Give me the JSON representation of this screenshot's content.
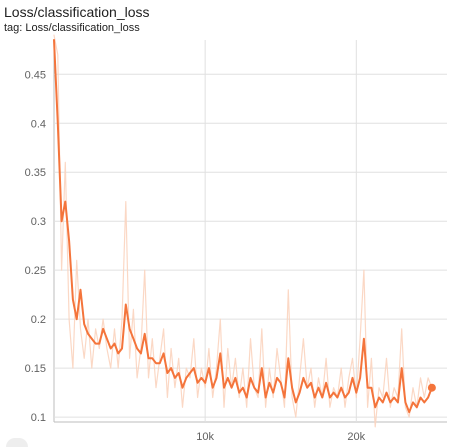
{
  "card": {
    "title": "Loss/classification_loss",
    "tag": "tag: Loss/classification_loss"
  },
  "chart_data": {
    "type": "line",
    "title": "Loss/classification_loss",
    "xlabel": "",
    "ylabel": "",
    "xlim": [
      0,
      26000
    ],
    "ylim": [
      0.095,
      0.485
    ],
    "grid": true,
    "x_ticks": [
      10000,
      20000
    ],
    "x_tick_labels": [
      "10k",
      "20k"
    ],
    "y_ticks": [
      0.1,
      0.15,
      0.2,
      0.25,
      0.3,
      0.35,
      0.4,
      0.45
    ],
    "y_tick_labels": [
      "0.1",
      "0.15",
      "0.2",
      "0.25",
      "0.3",
      "0.35",
      "0.4",
      "0.45"
    ],
    "colors": {
      "smoothed": "#f4743b",
      "raw": "#fbd4bf",
      "grid": "#e0e0e0"
    },
    "series": [
      {
        "kind": "raw",
        "x": [
          0,
          250,
          500,
          750,
          1000,
          1250,
          1500,
          1750,
          2000,
          2250,
          2500,
          2750,
          3000,
          3250,
          3500,
          3750,
          4000,
          4250,
          4500,
          4750,
          5000,
          5250,
          5500,
          5750,
          6000,
          6250,
          6500,
          6750,
          7000,
          7250,
          7500,
          7750,
          8000,
          8250,
          8500,
          8750,
          9000,
          9250,
          9500,
          9750,
          10000,
          10250,
          10500,
          10750,
          11000,
          11250,
          11500,
          11750,
          12000,
          12250,
          12500,
          12750,
          13000,
          13250,
          13500,
          13750,
          14000,
          14250,
          14500,
          14750,
          15000,
          15250,
          15500,
          15750,
          16000,
          16250,
          16500,
          16750,
          17000,
          17250,
          17500,
          17750,
          18000,
          18250,
          18500,
          18750,
          19000,
          19250,
          19500,
          19750,
          20000,
          20250,
          20500,
          20750,
          21000,
          21250,
          21500,
          21750,
          22000,
          22250,
          22500,
          22750,
          23000,
          23250,
          23500,
          23750,
          24000,
          24250,
          24500,
          24750,
          25000
        ],
        "y": [
          0.49,
          0.47,
          0.25,
          0.36,
          0.2,
          0.15,
          0.26,
          0.19,
          0.16,
          0.2,
          0.15,
          0.19,
          0.17,
          0.2,
          0.17,
          0.15,
          0.19,
          0.15,
          0.2,
          0.32,
          0.16,
          0.21,
          0.14,
          0.17,
          0.25,
          0.14,
          0.18,
          0.13,
          0.16,
          0.19,
          0.12,
          0.17,
          0.13,
          0.16,
          0.11,
          0.15,
          0.14,
          0.18,
          0.12,
          0.15,
          0.13,
          0.17,
          0.12,
          0.15,
          0.2,
          0.11,
          0.17,
          0.13,
          0.16,
          0.12,
          0.15,
          0.11,
          0.18,
          0.13,
          0.12,
          0.19,
          0.11,
          0.15,
          0.12,
          0.17,
          0.14,
          0.11,
          0.23,
          0.12,
          0.1,
          0.14,
          0.18,
          0.13,
          0.15,
          0.11,
          0.14,
          0.12,
          0.16,
          0.11,
          0.13,
          0.12,
          0.15,
          0.11,
          0.14,
          0.16,
          0.12,
          0.18,
          0.25,
          0.11,
          0.16,
          0.09,
          0.13,
          0.12,
          0.16,
          0.11,
          0.13,
          0.12,
          0.19,
          0.11,
          0.1,
          0.13,
          0.11,
          0.14,
          0.12,
          0.14,
          0.13
        ]
      },
      {
        "kind": "smoothed",
        "x": [
          0,
          250,
          500,
          750,
          1000,
          1250,
          1500,
          1750,
          2000,
          2250,
          2500,
          2750,
          3000,
          3250,
          3500,
          3750,
          4000,
          4250,
          4500,
          4750,
          5000,
          5250,
          5500,
          5750,
          6000,
          6250,
          6500,
          6750,
          7000,
          7250,
          7500,
          7750,
          8000,
          8250,
          8500,
          8750,
          9000,
          9250,
          9500,
          9750,
          10000,
          10250,
          10500,
          10750,
          11000,
          11250,
          11500,
          11750,
          12000,
          12250,
          12500,
          12750,
          13000,
          13250,
          13500,
          13750,
          14000,
          14250,
          14500,
          14750,
          15000,
          15250,
          15500,
          15750,
          16000,
          16250,
          16500,
          16750,
          17000,
          17250,
          17500,
          17750,
          18000,
          18250,
          18500,
          18750,
          19000,
          19250,
          19500,
          19750,
          20000,
          20250,
          20500,
          20750,
          21000,
          21250,
          21500,
          21750,
          22000,
          22250,
          22500,
          22750,
          23000,
          23250,
          23500,
          23750,
          24000,
          24250,
          24500,
          24750,
          25000
        ],
        "y": [
          0.485,
          0.4,
          0.3,
          0.32,
          0.28,
          0.22,
          0.2,
          0.23,
          0.195,
          0.185,
          0.18,
          0.175,
          0.175,
          0.19,
          0.18,
          0.17,
          0.175,
          0.165,
          0.17,
          0.215,
          0.19,
          0.18,
          0.17,
          0.165,
          0.185,
          0.16,
          0.16,
          0.155,
          0.155,
          0.165,
          0.145,
          0.15,
          0.14,
          0.145,
          0.13,
          0.14,
          0.145,
          0.15,
          0.135,
          0.14,
          0.135,
          0.15,
          0.13,
          0.14,
          0.165,
          0.13,
          0.14,
          0.13,
          0.14,
          0.125,
          0.13,
          0.12,
          0.14,
          0.13,
          0.125,
          0.15,
          0.12,
          0.135,
          0.125,
          0.14,
          0.135,
          0.12,
          0.16,
          0.13,
          0.115,
          0.125,
          0.14,
          0.13,
          0.135,
          0.12,
          0.13,
          0.12,
          0.135,
          0.12,
          0.125,
          0.12,
          0.13,
          0.12,
          0.125,
          0.14,
          0.125,
          0.14,
          0.18,
          0.13,
          0.13,
          0.11,
          0.12,
          0.115,
          0.125,
          0.115,
          0.12,
          0.115,
          0.15,
          0.115,
          0.105,
          0.115,
          0.11,
          0.12,
          0.115,
          0.12,
          0.13
        ]
      }
    ],
    "last_point": {
      "x": 25000,
      "y": 0.13
    }
  }
}
